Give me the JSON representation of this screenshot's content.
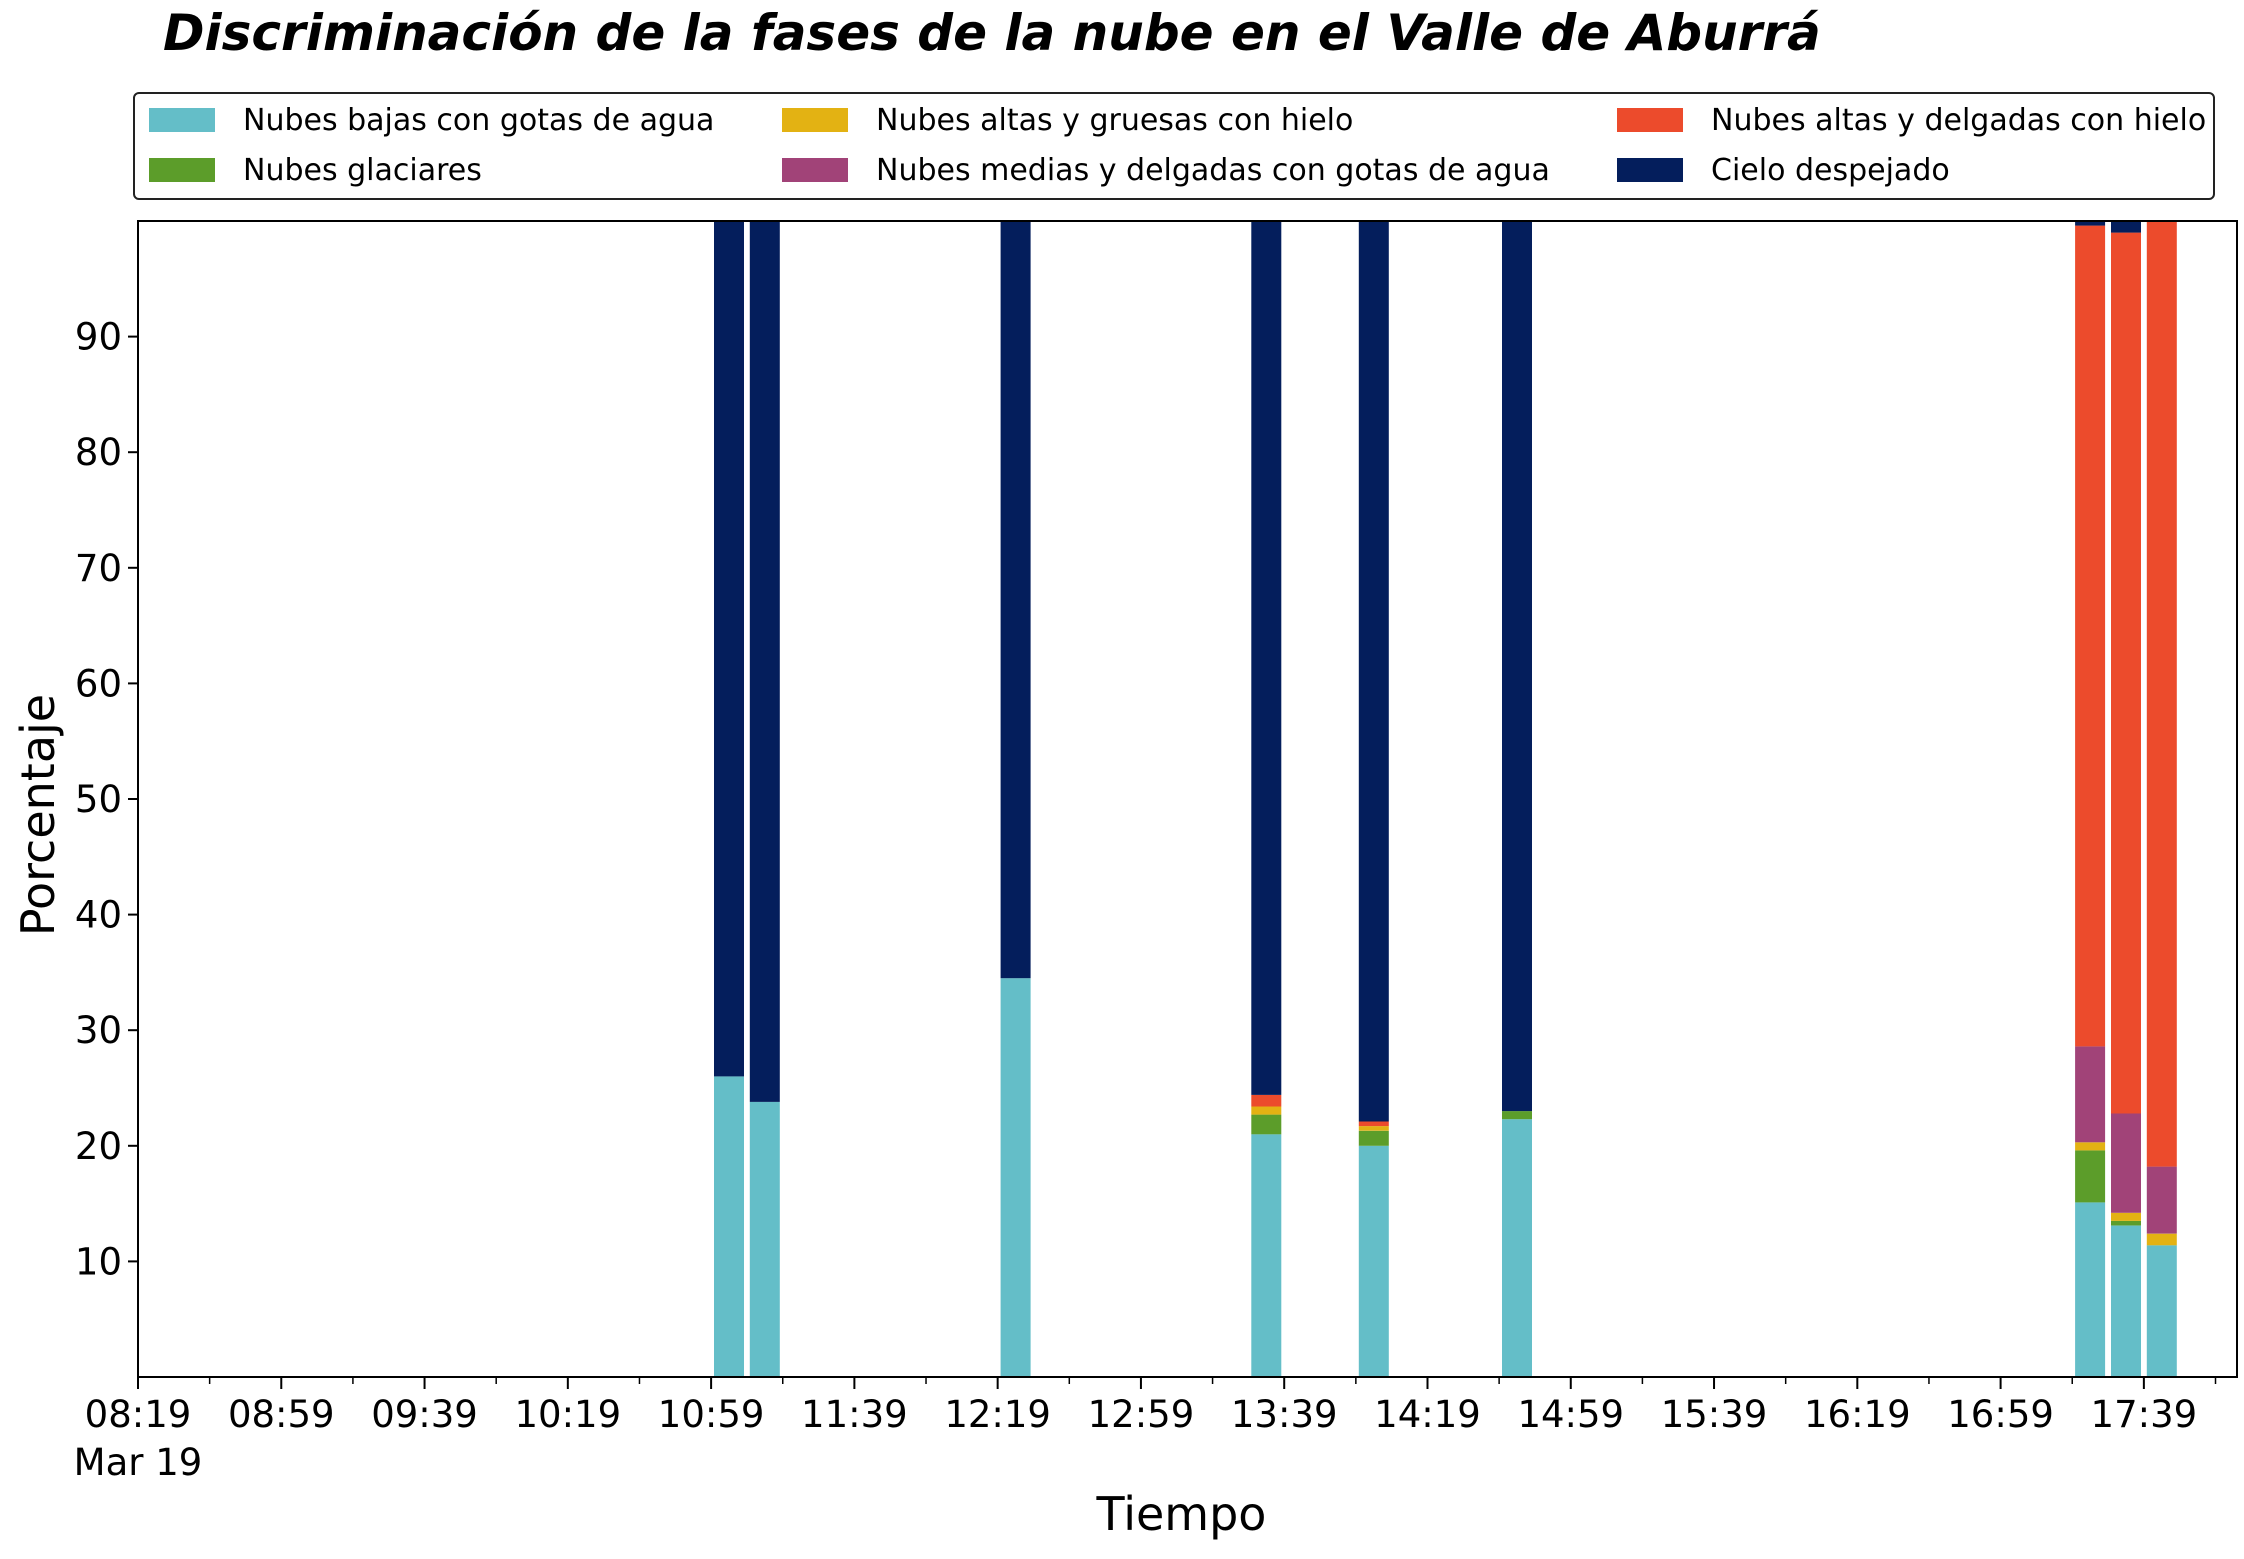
{
  "chart_data": {
    "type": "bar",
    "stacked": true,
    "title": "Discriminación de la fases de la nube en el Valle de Aburrá",
    "xlabel": "Tiempo",
    "ylabel": "Porcentaje",
    "ylim": [
      0,
      100
    ],
    "yticks": [
      "10",
      "20",
      "30",
      "40",
      "50",
      "60",
      "70",
      "80",
      "90"
    ],
    "xlim": [
      "08:19",
      "18:05"
    ],
    "xticks": [
      "08:19",
      "08:59",
      "09:39",
      "10:19",
      "10:59",
      "11:39",
      "12:19",
      "12:59",
      "13:39",
      "14:19",
      "14:59",
      "15:39",
      "16:19",
      "16:59",
      "17:39"
    ],
    "xtick_date": "Mar 19",
    "grid": false,
    "legend_position": "top",
    "x": [
      "11:04",
      "11:14",
      "12:24",
      "13:34",
      "14:04",
      "14:44",
      "17:24",
      "17:34",
      "17:44"
    ],
    "series": [
      {
        "name": "Nubes bajas con gotas de agua",
        "color": "#64bec8",
        "values": [
          26.0,
          23.8,
          34.5,
          21.0,
          20.0,
          22.3,
          15.1,
          13.1,
          11.4
        ]
      },
      {
        "name": "Nubes glaciares",
        "color": "#5c9d2a",
        "values": [
          0,
          0,
          0,
          1.7,
          1.3,
          0.7,
          4.5,
          0.4,
          0
        ]
      },
      {
        "name": "Nubes altas y gruesas con hielo",
        "color": "#e3b213",
        "values": [
          0,
          0,
          0,
          0.7,
          0.4,
          0,
          0.7,
          0.7,
          1.0
        ]
      },
      {
        "name": "Nubes medias y delgadas con gotas de agua",
        "color": "#a14378",
        "values": [
          0,
          0,
          0,
          0,
          0,
          0,
          8.3,
          8.6,
          5.8
        ]
      },
      {
        "name": "Nubes altas y delgadas con hielo",
        "color": "#ec4b2c",
        "values": [
          0,
          0,
          0,
          1.0,
          0.4,
          0,
          71.0,
          76.2,
          81.8
        ]
      },
      {
        "name": "Cielo despejado",
        "color": "#041e5c",
        "values": [
          74.0,
          76.2,
          65.5,
          75.6,
          77.9,
          77.0,
          0.4,
          1.0,
          0
        ]
      }
    ]
  }
}
